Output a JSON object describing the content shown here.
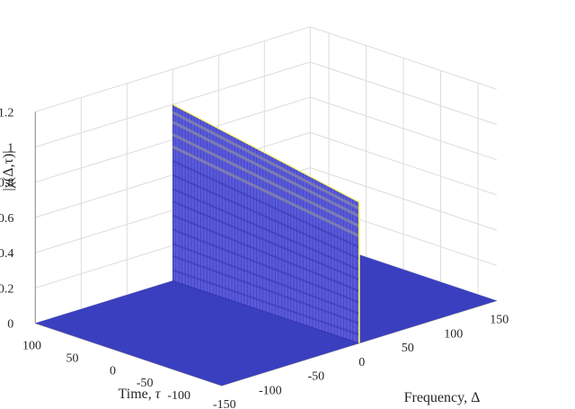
{
  "chart_data": {
    "type": "surface3d",
    "title": "",
    "xlabel_text": "Frequency, ",
    "xlabel_symbol": "Δ",
    "ylabel_text": "Time, ",
    "ylabel_symbol": "τ",
    "zlabel": "|χ(Δ,τ)|",
    "x_ticks": [
      "-150",
      "-100",
      "-50",
      "0",
      "50",
      "100",
      "150"
    ],
    "y_ticks": [
      "-100",
      "-50",
      "0",
      "50",
      "100"
    ],
    "z_ticks": [
      "0",
      "0.2",
      "0.4",
      "0.6",
      "0.8",
      "1",
      "1.2"
    ],
    "x_range": [
      -150,
      150
    ],
    "y_range": [
      -125,
      125
    ],
    "z_range": [
      0,
      1.2
    ],
    "ridge": {
      "frequency": 0,
      "time_range": [
        -125,
        125
      ],
      "amplitude_start": 0.8,
      "amplitude_end": 1.0
    },
    "floor_value": 0,
    "grid": true,
    "colors": {
      "surface": "#3a3fbf",
      "ridge_face": "#5a5adc",
      "ridge_band": "#7f7faf",
      "ridge_edge": "#ffff66"
    }
  }
}
